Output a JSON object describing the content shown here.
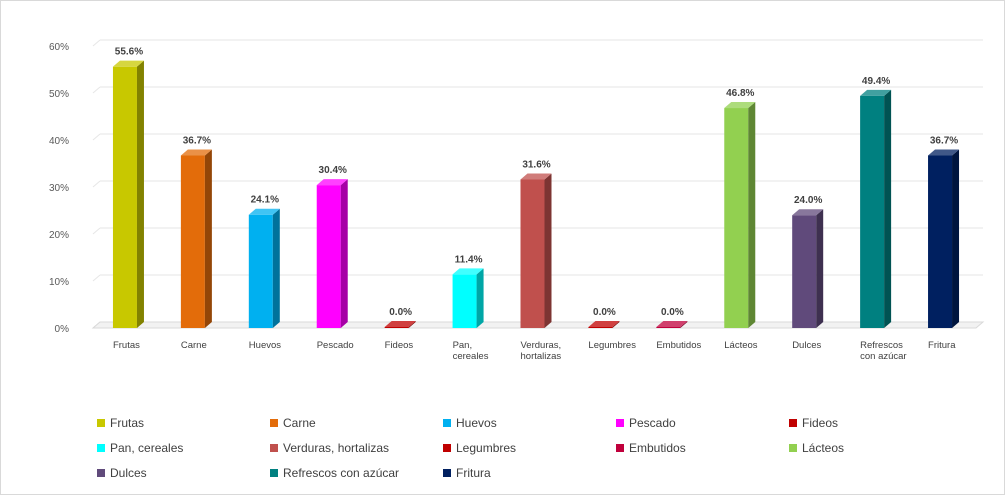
{
  "chart_data": {
    "type": "bar",
    "title": "",
    "xlabel": "",
    "ylabel": "",
    "ylim": [
      0,
      60
    ],
    "yticks": [
      0,
      10,
      20,
      30,
      40,
      50,
      60
    ],
    "ytick_labels": [
      "0%",
      "10%",
      "20%",
      "30%",
      "40%",
      "50%",
      "60%"
    ],
    "grid": true,
    "style": "3d-column",
    "legend_position": "bottom",
    "categories": [
      [
        "Frutas"
      ],
      [
        "Carne"
      ],
      [
        "Huevos"
      ],
      [
        "Pescado"
      ],
      [
        "Fideos"
      ],
      [
        "Pan,",
        "cereales"
      ],
      [
        "Verduras,",
        "hortalizas"
      ],
      [
        "Legumbres"
      ],
      [
        "Embutidos"
      ],
      [
        "Lácteos"
      ],
      [
        "Dulces"
      ],
      [
        "Refrescos",
        "con azúcar"
      ],
      [
        "Fritura"
      ]
    ],
    "values": [
      55.6,
      36.7,
      24.1,
      30.4,
      0.0,
      11.4,
      31.6,
      0.0,
      0.0,
      46.8,
      24.0,
      49.4,
      36.7
    ],
    "data_labels": [
      "55.6%",
      "36.7%",
      "24.1%",
      "30.4%",
      "0.0%",
      "11.4%",
      "31.6%",
      "0.0%",
      "0.0%",
      "46.8%",
      "24.0%",
      "49.4%",
      "36.7%"
    ],
    "colors": [
      "#c8c800",
      "#e36c0a",
      "#00b0f0",
      "#ff00ff",
      "#c00000",
      "#00ffff",
      "#c0504d",
      "#c00000",
      "#c0003c",
      "#92d050",
      "#604a7b",
      "#008080",
      "#002060"
    ]
  },
  "legend": {
    "items": [
      {
        "label": "Frutas",
        "color": "#c8c800"
      },
      {
        "label": "Carne",
        "color": "#e36c0a"
      },
      {
        "label": "Huevos",
        "color": "#00b0f0"
      },
      {
        "label": "Pescado",
        "color": "#ff00ff"
      },
      {
        "label": "Fideos",
        "color": "#c00000"
      },
      {
        "label": "Pan, cereales",
        "color": "#00ffff"
      },
      {
        "label": "Verduras, hortalizas",
        "color": "#c0504d"
      },
      {
        "label": "Legumbres",
        "color": "#c00000"
      },
      {
        "label": "Embutidos",
        "color": "#c0003c"
      },
      {
        "label": "Lácteos",
        "color": "#92d050"
      },
      {
        "label": "Dulces",
        "color": "#604a7b"
      },
      {
        "label": "Refrescos con azúcar",
        "color": "#008080"
      },
      {
        "label": "Fritura",
        "color": "#002060"
      }
    ]
  }
}
